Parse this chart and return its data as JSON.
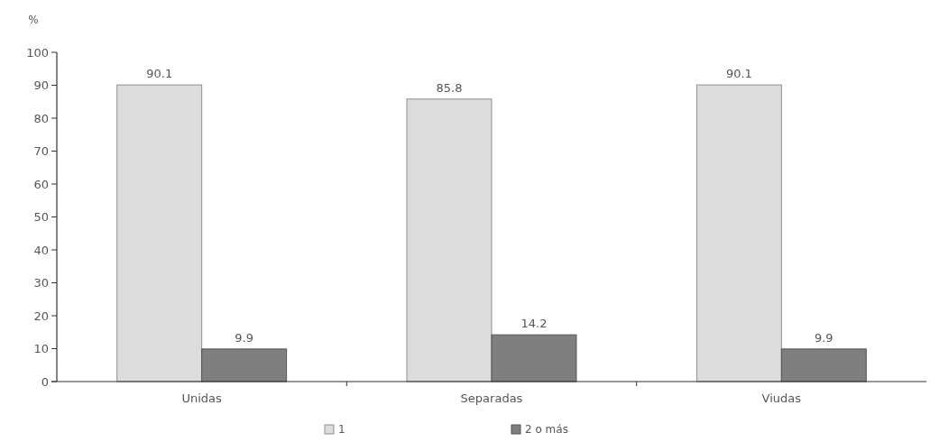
{
  "chart_data": {
    "type": "bar",
    "ylabel": "%",
    "categories": [
      "Unidas",
      "Separadas",
      "Viudas"
    ],
    "series": [
      {
        "name": "1",
        "color": "#dcdcdc",
        "values": [
          90.1,
          85.8,
          90.1
        ]
      },
      {
        "name": "2 o más",
        "color": "#7f7f7f",
        "values": [
          9.9,
          14.2,
          9.9
        ]
      }
    ],
    "ylim": [
      0,
      100
    ],
    "yticks": [
      0,
      10,
      20,
      30,
      40,
      50,
      60,
      70,
      80,
      90,
      100
    ],
    "data_labels": true,
    "legend": "bottom",
    "grid": false
  }
}
